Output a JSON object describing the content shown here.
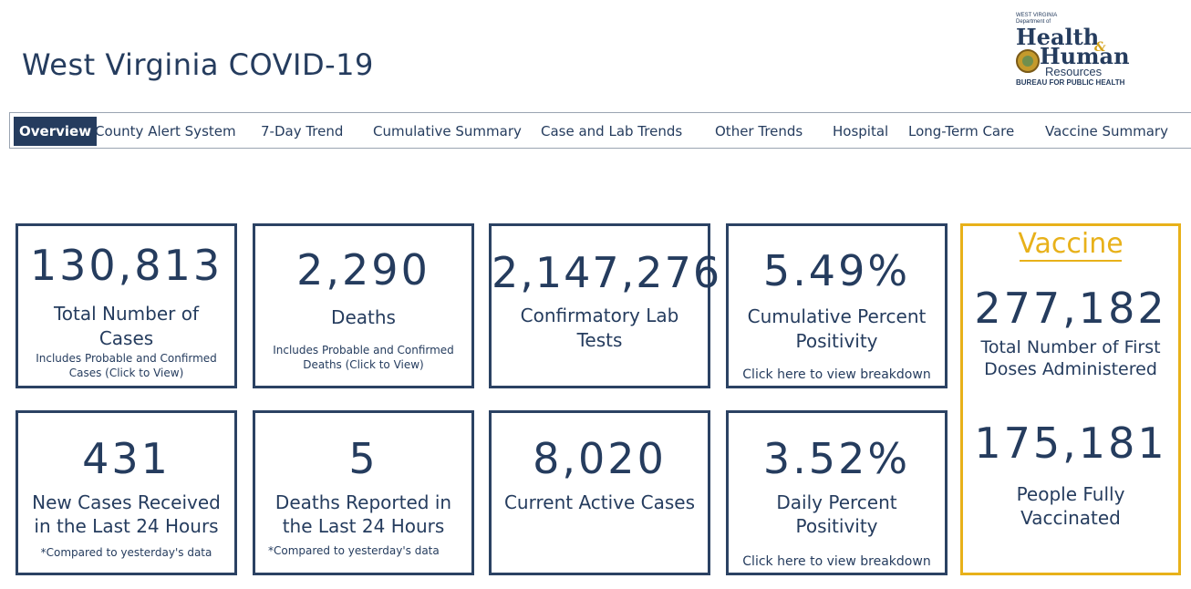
{
  "header": {
    "title": "West Virginia COVID-19",
    "logo": {
      "line1": "WEST VIRGINIA",
      "line2": "Department of",
      "health": "Health",
      "amp": "&",
      "human": "Human",
      "resources": "Resources",
      "bureau": "BUREAU FOR PUBLIC HEALTH"
    }
  },
  "tabs": [
    {
      "label": "Overview",
      "active": true
    },
    {
      "label": "County Alert System"
    },
    {
      "label": "7-Day Trend"
    },
    {
      "label": "Cumulative Summary"
    },
    {
      "label": "Case and Lab Trends"
    },
    {
      "label": "Other Trends"
    },
    {
      "label": "Hospital"
    },
    {
      "label": "Long-Term Care"
    },
    {
      "label": "Vaccine Summary"
    }
  ],
  "cards": {
    "total_cases": {
      "value": "130,813",
      "label": "Total Number of Cases",
      "note": "Includes Probable and Confirmed Cases (Click to View)"
    },
    "deaths": {
      "value": "2,290",
      "label": "Deaths",
      "note": "Includes Probable and Confirmed Deaths (Click to View)"
    },
    "lab_tests": {
      "value": "2,147,276",
      "label": "Confirmatory Lab Tests"
    },
    "cumulative_positivity": {
      "value": "5.49%",
      "label": "Cumulative Percent Positivity",
      "link": "Click here to view breakdown"
    },
    "new_cases": {
      "value": "431",
      "label": "New Cases Received in the Last 24 Hours",
      "note": "*Compared to yesterday's data"
    },
    "new_deaths": {
      "value": "5",
      "label": "Deaths Reported in the Last 24 Hours",
      "note": "*Compared to yesterday's data"
    },
    "active_cases": {
      "value": "8,020",
      "label": "Current Active Cases"
    },
    "daily_positivity": {
      "value": "3.52%",
      "label": "Daily Percent Positivity",
      "link": "Click here to view breakdown"
    }
  },
  "vaccine": {
    "heading": "Vaccine",
    "first_doses": {
      "value": "277,182",
      "label": "Total Number of First Doses Administered"
    },
    "fully_vaccinated": {
      "value": "175,181",
      "label": "People Fully Vaccinated"
    }
  },
  "colors": {
    "navy": "#253c5e",
    "gold": "#e8b11a",
    "border": "#2b4263"
  }
}
